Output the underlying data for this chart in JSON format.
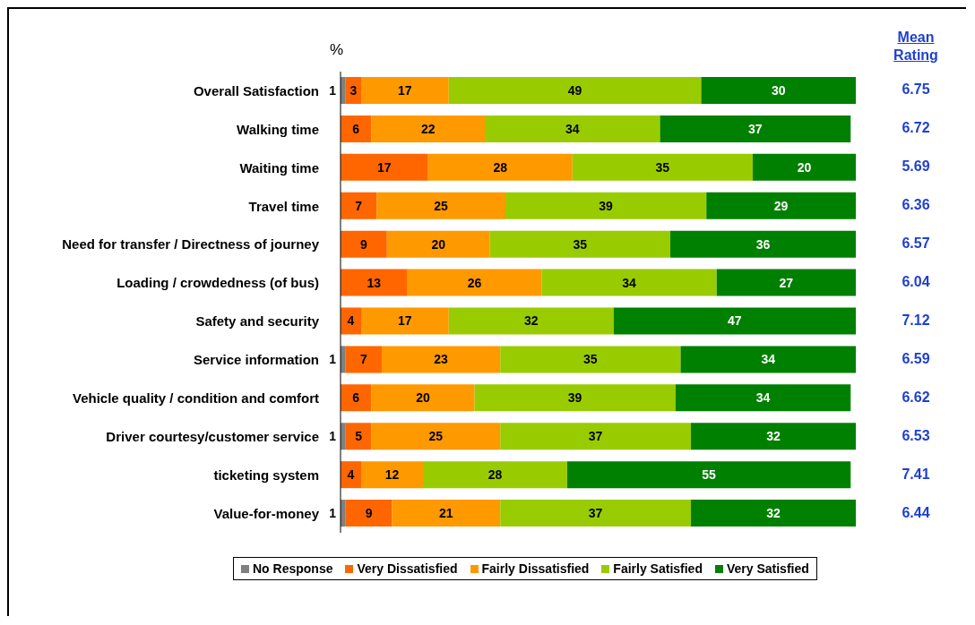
{
  "chart_data": {
    "type": "bar",
    "orientation": "horizontal",
    "stacked": true,
    "xlabel": "%",
    "categories": [
      "Overall Satisfaction",
      "Walking time",
      "Waiting time",
      "Travel time",
      "Need for transfer / Directness of journey",
      "Loading / crowdedness (of bus)",
      "Safety and security",
      "Service information",
      "Vehicle quality / condition and comfort",
      "Driver courtesy/customer service",
      "ticketing system",
      "Value-for-money"
    ],
    "series": [
      {
        "name": "No Response",
        "color": "#808080",
        "values": [
          1,
          null,
          null,
          null,
          null,
          null,
          null,
          1,
          null,
          1,
          null,
          1
        ]
      },
      {
        "name": "Very Dissatisfied",
        "color": "#ff6600",
        "values": [
          3,
          6,
          17,
          7,
          9,
          13,
          4,
          7,
          6,
          5,
          4,
          9
        ]
      },
      {
        "name": "Fairly Dissatisfied",
        "color": "#ff9900",
        "values": [
          17,
          22,
          28,
          25,
          20,
          26,
          17,
          23,
          20,
          25,
          12,
          21
        ]
      },
      {
        "name": "Fairly Satisfied",
        "color": "#99cc00",
        "values": [
          49,
          34,
          35,
          39,
          35,
          34,
          32,
          35,
          39,
          37,
          28,
          37
        ]
      },
      {
        "name": "Very Satisfied",
        "color": "#008000",
        "values": [
          30,
          37,
          20,
          29,
          36,
          27,
          47,
          34,
          34,
          32,
          55,
          32
        ]
      }
    ],
    "xlim": [
      0,
      100
    ],
    "tick_labels": "y",
    "data_labels": true,
    "legend": "bottom",
    "grid": false,
    "annotations": [
      "Mean Rating",
      "6.75",
      "6.72",
      "5.69",
      "6.36",
      "6.57",
      "6.04",
      "7.12",
      "6.59",
      "6.62",
      "6.53",
      "7.41",
      "6.44"
    ]
  }
}
